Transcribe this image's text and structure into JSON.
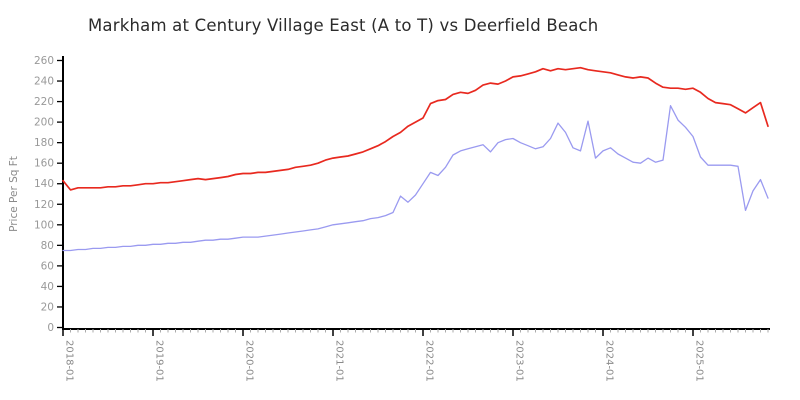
{
  "chart": {
    "title": "Markham at Century Village East (A to T) vs Deerfield Beach",
    "ylabel": "Price Per Sq Ft"
  },
  "chart_data": {
    "type": "line",
    "title": "Markham at Century Village East (A to T) vs Deerfield Beach",
    "xlabel": "",
    "ylabel": "Price Per Sq Ft",
    "x_start": "2018-01",
    "x_end": "2025-11",
    "x_frequency": "monthly",
    "x_tick_labels": [
      "2018-01",
      "2019-01",
      "2020-01",
      "2021-01",
      "2022-01",
      "2023-01",
      "2024-01",
      "2025-01"
    ],
    "ylim": [
      0,
      260
    ],
    "y_tick_step": 20,
    "grid": false,
    "legend": "none",
    "colors": {
      "axis": "#000000",
      "tick_labels": "#999999",
      "minor_tick": "#aaaaaa",
      "title": "#2b2b2b"
    },
    "series": [
      {
        "name": "red-upper",
        "color": "#e8291f",
        "values": [
          143,
          134,
          136,
          136,
          136,
          136,
          137,
          137,
          138,
          138,
          139,
          140,
          140,
          141,
          141,
          142,
          143,
          144,
          145,
          144,
          145,
          146,
          147,
          149,
          150,
          150,
          151,
          151,
          152,
          153,
          154,
          156,
          157,
          158,
          160,
          163,
          165,
          166,
          167,
          169,
          171,
          174,
          177,
          181,
          186,
          190,
          196,
          200,
          204,
          218,
          221,
          222,
          227,
          229,
          228,
          231,
          236,
          238,
          237,
          240,
          244,
          245,
          247,
          249,
          252,
          250,
          252,
          251,
          252,
          253,
          251,
          250,
          249,
          248,
          246,
          244,
          243,
          244,
          243,
          238,
          234,
          233,
          233,
          232,
          233,
          229,
          223,
          219,
          218,
          217,
          213,
          209,
          214,
          219,
          196
        ]
      },
      {
        "name": "blue-lower",
        "color": "#9a9af0",
        "values": [
          75,
          75,
          76,
          76,
          77,
          77,
          78,
          78,
          79,
          79,
          80,
          80,
          81,
          81,
          82,
          82,
          83,
          83,
          84,
          85,
          85,
          86,
          86,
          87,
          88,
          88,
          88,
          89,
          90,
          91,
          92,
          93,
          94,
          95,
          96,
          98,
          100,
          101,
          102,
          103,
          104,
          106,
          107,
          109,
          112,
          128,
          122,
          129,
          140,
          151,
          148,
          156,
          168,
          172,
          174,
          176,
          178,
          171,
          180,
          183,
          184,
          180,
          177,
          174,
          176,
          184,
          199,
          190,
          175,
          172,
          201,
          165,
          172,
          175,
          169,
          165,
          161,
          160,
          165,
          161,
          163,
          216,
          202,
          195,
          186,
          166,
          158,
          158,
          158,
          158,
          157,
          114,
          133,
          144,
          126
        ]
      }
    ]
  }
}
